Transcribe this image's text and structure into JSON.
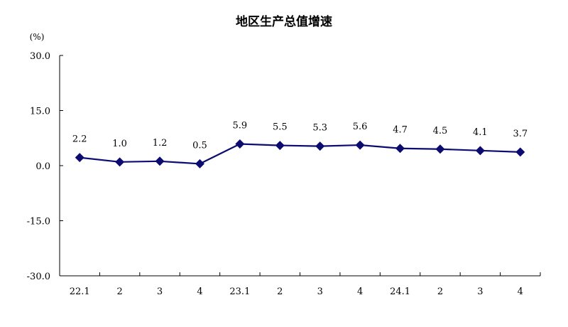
{
  "chart_data": {
    "type": "line",
    "title": "地区生产总值增速",
    "unit_label": "(%)",
    "categories": [
      "22.1",
      "2",
      "3",
      "4",
      "23.1",
      "2",
      "3",
      "4",
      "24.1",
      "2",
      "3",
      "4"
    ],
    "series": [
      {
        "values": [
          2.2,
          1.0,
          1.2,
          0.5,
          5.9,
          5.5,
          5.3,
          5.6,
          4.7,
          4.5,
          4.1,
          3.7
        ],
        "labels": [
          "2.2",
          "1.0",
          "1.2",
          "0.5",
          "5.9",
          "5.5",
          "5.3",
          "5.6",
          "4.7",
          "4.5",
          "4.1",
          "3.7"
        ],
        "color": "#0c0c70",
        "marker": "diamond"
      }
    ],
    "ylim": [
      -30,
      30
    ],
    "yticks": [
      30,
      15,
      0,
      -15,
      -30
    ],
    "ytick_labels": [
      "30.0",
      "15.0",
      "0.0",
      "-15.0",
      "-30.0"
    ],
    "grid": false,
    "legend": "none"
  }
}
